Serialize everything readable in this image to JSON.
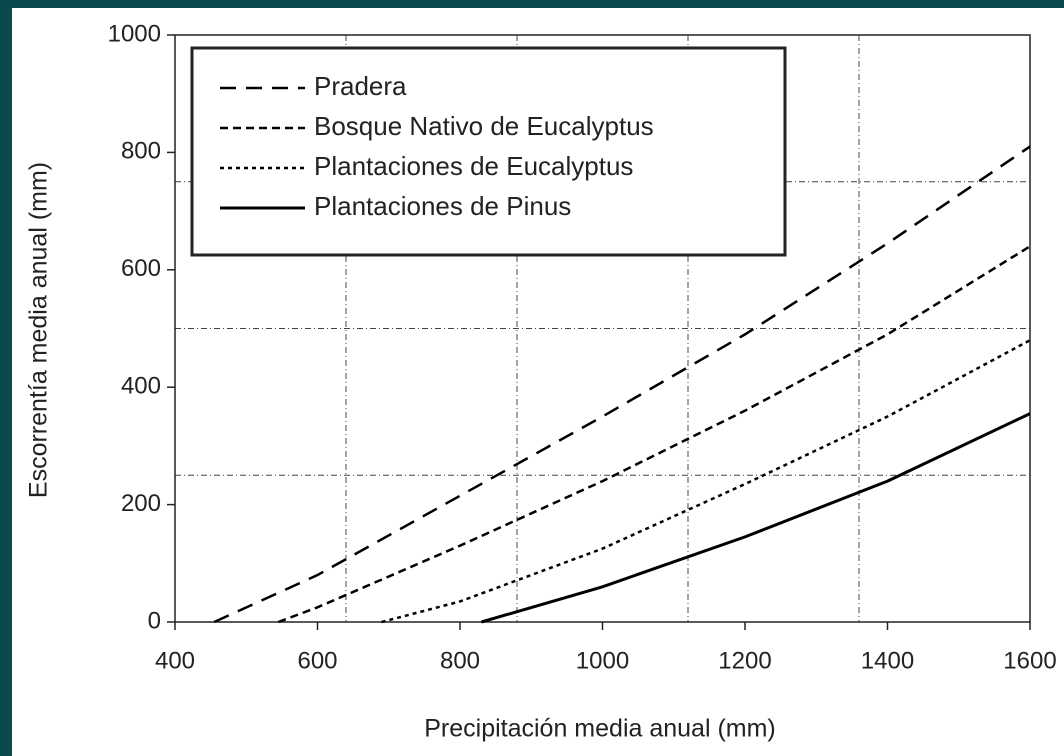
{
  "chart_data": {
    "type": "line",
    "xlabel": "Precipitación media anual (mm)",
    "ylabel": "Escorrentía media anual (mm)",
    "xlim": [
      400,
      1600
    ],
    "ylim": [
      0,
      1000
    ],
    "xticks": [
      400,
      600,
      800,
      1000,
      1200,
      1400,
      1600
    ],
    "yticks": [
      0,
      200,
      400,
      600,
      800,
      1000
    ],
    "reference_x": [
      640,
      880,
      1120,
      1360
    ],
    "reference_y": [
      250,
      500,
      750
    ],
    "series": [
      {
        "name": "Pradera",
        "color": "#000000",
        "dash": "16 10",
        "width": 2.5,
        "x": [
          455,
          600,
          800,
          1000,
          1200,
          1400,
          1600
        ],
        "values": [
          0,
          80,
          215,
          350,
          490,
          645,
          810
        ]
      },
      {
        "name": "Bosque Nativo de Eucalyptus",
        "color": "#000000",
        "dash": "8 5",
        "width": 2.5,
        "x": [
          545,
          600,
          800,
          1000,
          1200,
          1400,
          1600
        ],
        "values": [
          0,
          25,
          130,
          240,
          360,
          490,
          640
        ]
      },
      {
        "name": "Plantaciones de Eucalyptus",
        "color": "#000000",
        "dash": "4 4",
        "width": 2.5,
        "x": [
          690,
          800,
          1000,
          1200,
          1400,
          1600
        ],
        "values": [
          0,
          35,
          125,
          235,
          350,
          480
        ]
      },
      {
        "name": "Plantaciones de Pinus",
        "color": "#000000",
        "dash": "none",
        "width": 3,
        "x": [
          830,
          1000,
          1200,
          1400,
          1600
        ],
        "values": [
          0,
          60,
          145,
          240,
          355
        ]
      }
    ]
  }
}
